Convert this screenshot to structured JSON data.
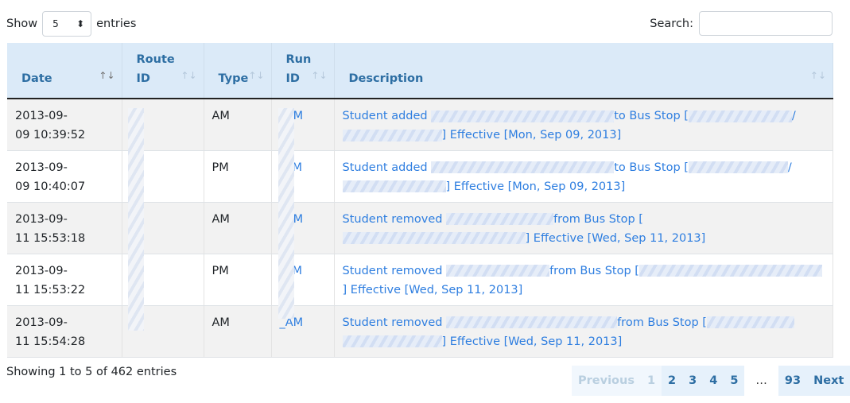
{
  "length": {
    "show": "Show",
    "value": "5",
    "entries": "entries"
  },
  "search": {
    "label": "Search:",
    "value": ""
  },
  "columns": [
    {
      "line1": "",
      "line2": "Date",
      "sort": "asc"
    },
    {
      "line1": "Route",
      "line2": "ID",
      "sort": "none"
    },
    {
      "line1": "",
      "line2": "Type",
      "sort": "none"
    },
    {
      "line1": "Run",
      "line2": "ID",
      "sort": "none"
    },
    {
      "line1": "",
      "line2": "Description",
      "sort": "none"
    }
  ],
  "rows": [
    {
      "date1": "2013-09-",
      "date2": "09 10:39:52",
      "type": "AM",
      "run": "_AM",
      "a": "Student added",
      "b": "to Bus Stop [",
      "c": "/",
      "d": "] Effective [Mon, Sep 09, 2013]"
    },
    {
      "date1": "2013-09-",
      "date2": "09 10:40:07",
      "type": "PM",
      "run": "_PM",
      "a": "Student added",
      "b": "to Bus Stop [",
      "c": "/",
      "d": "] Effective [Mon, Sep 09, 2013]"
    },
    {
      "date1": "2013-09-",
      "date2": "11 15:53:18",
      "type": "AM",
      "run": "_AM",
      "a": "Student removed",
      "b": "from Bus Stop [",
      "c": "]",
      "d": "Effective [Wed, Sep 11, 2013]"
    },
    {
      "date1": "2013-09-",
      "date2": "11 15:53:22",
      "type": "PM",
      "run": "_PM",
      "a": "Student removed",
      "b": "from Bus Stop [",
      "c": "]",
      "d": "Effective [Wed, Sep 11, 2013]"
    },
    {
      "date1": "2013-09-",
      "date2": "11 15:54:28",
      "type": "AM",
      "run": "_AM",
      "a": "Student removed",
      "b": "from Bus Stop [",
      "c": "",
      "d": "] Effective [Wed, Sep 11, 2013]"
    }
  ],
  "info": "Showing 1 to 5 of 462 entries",
  "pagination": {
    "previous": "Previous",
    "pages": [
      "1",
      "2",
      "3",
      "4",
      "5"
    ],
    "ellipsis": "…",
    "last": "93",
    "next": "Next",
    "current": "1"
  }
}
